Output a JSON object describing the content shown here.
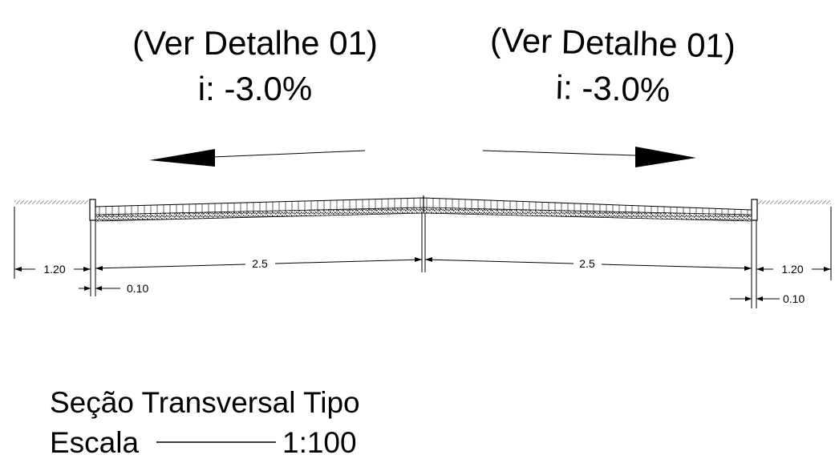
{
  "annotations": {
    "left": {
      "reference": "(Ver Detalhe 01)",
      "slope": "i: -3.0%"
    },
    "right": {
      "reference": "(Ver Detalhe 01)",
      "slope": "i: -3.0%"
    }
  },
  "dimensions": {
    "left_sidewalk": "1.20",
    "left_curb": "0.10",
    "left_lane": "2.5",
    "right_lane": "2.5",
    "right_sidewalk": "1.20",
    "right_curb": "0.10"
  },
  "title": {
    "name": "Seção Transversal Tipo",
    "scale_label": "Escala",
    "scale_value": "1:100"
  }
}
